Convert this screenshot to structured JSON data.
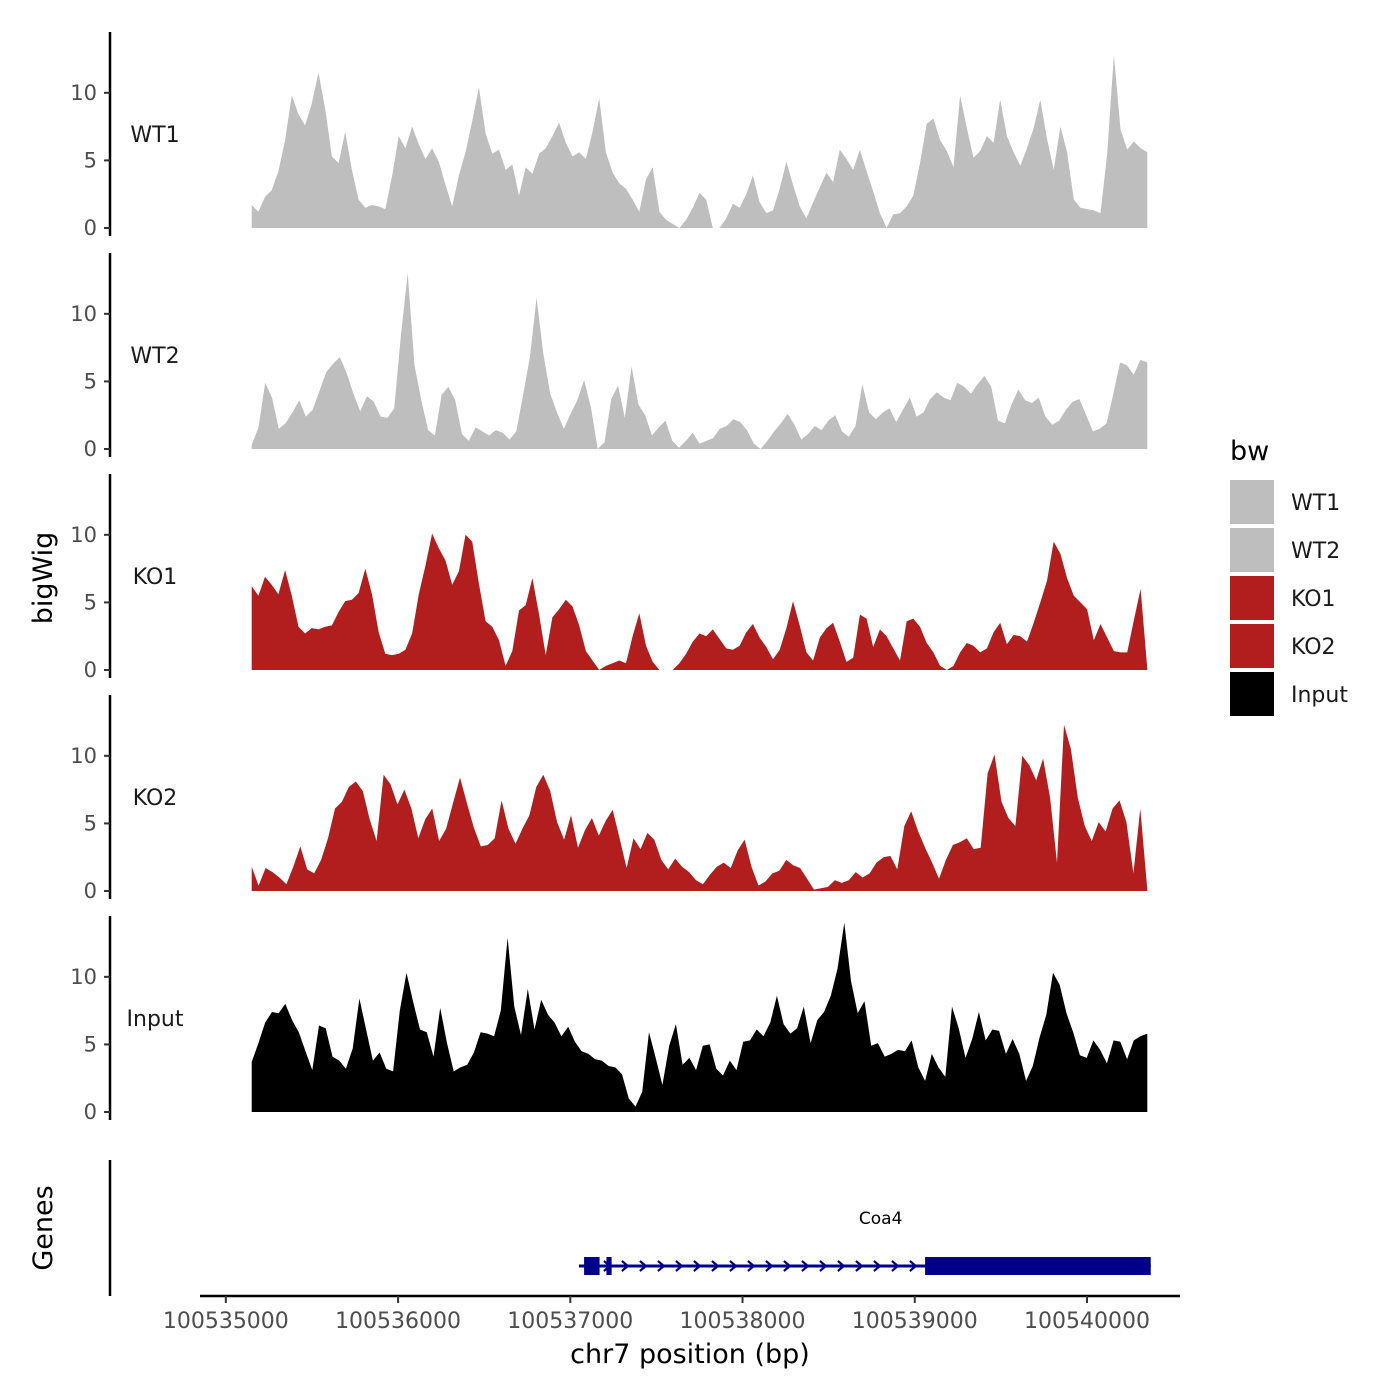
{
  "chart_data": {
    "type": "area",
    "title": "",
    "xlabel": "chr7 position (bp)",
    "ylabel": "bigWig",
    "genes_panel_label": "Genes",
    "xlim": [
      100534850,
      100540540
    ],
    "data_range": [
      100535150,
      100540350
    ],
    "xticks": [
      100535000,
      100536000,
      100537000,
      100538000,
      100539000,
      100540000
    ],
    "xtick_labels": [
      "100535000",
      "100536000",
      "100537000",
      "100538000",
      "100539000",
      "100540000"
    ],
    "ylim": [
      0,
      14.5
    ],
    "yticks": [
      0,
      5,
      10
    ],
    "ytick_labels": [
      "0",
      "5",
      "10"
    ],
    "legend_title": "bw",
    "series": [
      {
        "name": "WT1",
        "color": "#bebebe",
        "values": [
          1.7,
          1.2,
          2.3,
          2.8,
          4.2,
          6.5,
          9.8,
          8.4,
          7.6,
          9.2,
          11.5,
          8.8,
          5.3,
          4.8,
          7.1,
          4.3,
          2.1,
          1.5,
          1.7,
          1.6,
          1.4,
          3.8,
          6.8,
          5.9,
          7.5,
          6.2,
          5.1,
          5.9,
          4.9,
          3.2,
          1.6,
          3.9,
          5.6,
          7.9,
          10.4,
          7.0,
          5.5,
          5.8,
          4.3,
          4.7,
          2.4,
          4.5,
          4.0,
          5.5,
          5.9,
          6.8,
          7.8,
          6.3,
          5.3,
          5.6,
          5.1,
          7.1,
          9.6,
          5.6,
          4.1,
          3.3,
          2.9,
          2.1,
          1.2,
          3.6,
          4.5,
          1.2,
          0.6,
          0.3,
          0.0,
          0.6,
          1.5,
          2.6,
          2.1,
          0.0,
          0.0,
          0.7,
          1.8,
          1.5,
          2.5,
          3.9,
          1.9,
          1.1,
          1.3,
          2.9,
          4.9,
          3.2,
          1.6,
          0.7,
          1.9,
          3.0,
          4.1,
          3.4,
          5.8,
          5.1,
          4.3,
          5.8,
          4.2,
          2.7,
          1.1,
          0.0,
          1.0,
          1.1,
          1.6,
          2.4,
          4.8,
          7.7,
          8.1,
          6.5,
          5.7,
          4.5,
          9.8,
          7.4,
          5.2,
          5.7,
          6.8,
          6.3,
          9.5,
          6.8,
          5.6,
          4.6,
          5.9,
          7.4,
          9.5,
          6.6,
          4.3,
          7.5,
          5.6,
          2.1,
          1.5,
          1.4,
          1.3,
          1.1,
          5.5,
          12.8,
          7.3,
          5.8,
          6.4,
          5.9,
          5.6
        ]
      },
      {
        "name": "WT2",
        "color": "#bebebe",
        "values": [
          0.3,
          1.6,
          4.9,
          3.8,
          1.5,
          1.9,
          2.7,
          3.6,
          2.4,
          2.9,
          4.3,
          5.7,
          6.3,
          6.8,
          5.6,
          4.1,
          2.8,
          3.9,
          3.5,
          2.4,
          2.3,
          3.0,
          8.4,
          13.0,
          6.2,
          3.6,
          1.4,
          1.0,
          4.0,
          4.6,
          3.6,
          1.1,
          0.6,
          1.6,
          1.3,
          1.0,
          1.4,
          1.2,
          0.7,
          1.3,
          4.0,
          6.8,
          11.2,
          7.0,
          4.1,
          2.7,
          1.5,
          2.6,
          3.6,
          5.1,
          3.1,
          0.0,
          0.5,
          3.7,
          4.7,
          2.3,
          6.1,
          3.3,
          2.5,
          1.0,
          1.6,
          2.1,
          0.6,
          0.1,
          0.6,
          1.2,
          0.4,
          0.6,
          0.8,
          1.5,
          1.7,
          2.2,
          2.0,
          1.4,
          0.4,
          0.0,
          0.6,
          1.3,
          1.9,
          2.6,
          1.8,
          0.7,
          1.1,
          1.7,
          1.4,
          2.1,
          2.5,
          1.3,
          0.9,
          1.7,
          4.8,
          2.7,
          2.2,
          2.7,
          3.0,
          2.0,
          2.9,
          3.8,
          2.4,
          2.7,
          3.7,
          4.2,
          3.8,
          3.6,
          4.9,
          4.6,
          4.1,
          4.8,
          5.4,
          4.6,
          2.1,
          1.9,
          3.3,
          4.4,
          3.6,
          3.4,
          3.8,
          2.4,
          1.8,
          2.1,
          2.9,
          3.5,
          3.7,
          2.5,
          1.3,
          1.5,
          1.9,
          4.1,
          6.4,
          6.2,
          5.5,
          6.6,
          6.4
        ]
      },
      {
        "name": "KO1",
        "color": "#b21e1e",
        "values": [
          6.2,
          5.5,
          6.9,
          6.3,
          5.6,
          7.4,
          5.5,
          3.2,
          2.7,
          3.1,
          3.0,
          3.2,
          3.3,
          4.3,
          5.1,
          5.2,
          5.7,
          7.5,
          5.6,
          2.8,
          1.2,
          1.1,
          1.2,
          1.5,
          2.7,
          5.6,
          7.7,
          10.1,
          9.0,
          8.1,
          6.3,
          7.3,
          10.0,
          9.5,
          6.4,
          3.6,
          3.2,
          2.2,
          0.3,
          1.4,
          4.4,
          4.8,
          6.8,
          4.1,
          1.1,
          3.9,
          4.5,
          5.2,
          4.7,
          3.3,
          1.4,
          0.7,
          0.0,
          0.3,
          0.5,
          0.7,
          0.5,
          2.5,
          4.2,
          1.8,
          0.6,
          0.0,
          0.0,
          0.0,
          0.5,
          1.2,
          2.1,
          2.7,
          2.5,
          3.0,
          2.3,
          1.6,
          1.5,
          1.8,
          2.8,
          3.4,
          2.4,
          1.7,
          0.8,
          1.5,
          3.1,
          5.1,
          3.3,
          1.3,
          0.7,
          2.4,
          3.1,
          3.5,
          2.1,
          0.6,
          0.9,
          4.1,
          3.8,
          1.7,
          3.0,
          2.5,
          1.6,
          0.7,
          3.6,
          3.8,
          3.2,
          2.0,
          1.3,
          0.3,
          0.0,
          0.3,
          1.3,
          2.0,
          1.8,
          1.3,
          1.6,
          2.8,
          3.5,
          1.9,
          2.6,
          2.5,
          2.1,
          3.5,
          5.0,
          6.6,
          9.5,
          8.6,
          6.8,
          5.5,
          5.0,
          4.5,
          2.2,
          3.4,
          2.4,
          1.4,
          1.3,
          1.3,
          3.7,
          6.0,
          0.1
        ]
      },
      {
        "name": "KO2",
        "color": "#b21e1e",
        "values": [
          1.8,
          0.4,
          1.7,
          1.4,
          1.0,
          0.5,
          1.8,
          3.3,
          1.6,
          1.3,
          2.3,
          3.9,
          6.1,
          6.6,
          7.7,
          8.1,
          7.4,
          5.3,
          3.7,
          8.6,
          7.9,
          6.4,
          7.5,
          6.1,
          3.9,
          5.3,
          6.1,
          3.7,
          4.6,
          6.5,
          8.4,
          6.5,
          4.7,
          3.3,
          3.4,
          3.9,
          6.7,
          4.6,
          3.5,
          4.6,
          5.6,
          7.7,
          8.6,
          7.4,
          5.1,
          3.8,
          5.6,
          3.2,
          4.5,
          5.4,
          4.1,
          5.2,
          6.0,
          3.9,
          1.7,
          3.9,
          3.1,
          4.3,
          3.8,
          2.3,
          1.6,
          2.4,
          1.8,
          1.4,
          0.8,
          0.5,
          1.2,
          1.8,
          2.1,
          1.7,
          3.0,
          3.8,
          1.8,
          0.4,
          0.7,
          1.3,
          1.5,
          2.3,
          1.9,
          1.7,
          0.9,
          0.1,
          0.2,
          0.3,
          0.8,
          0.6,
          0.8,
          1.4,
          1.0,
          1.3,
          2.1,
          2.5,
          2.6,
          1.6,
          4.8,
          5.9,
          4.4,
          3.2,
          2.1,
          0.9,
          2.3,
          3.4,
          3.6,
          3.9,
          3.1,
          3.2,
          8.7,
          10.1,
          6.6,
          5.4,
          4.8,
          10.0,
          9.3,
          8.2,
          9.8,
          6.9,
          2.1,
          12.3,
          10.5,
          6.9,
          4.8,
          3.7,
          5.1,
          4.4,
          6.1,
          6.7,
          5.1,
          1.3,
          6.1,
          0.1
        ]
      },
      {
        "name": "Input",
        "color": "#000000",
        "values": [
          3.7,
          5.1,
          6.6,
          7.4,
          7.3,
          8.0,
          6.8,
          5.9,
          4.5,
          3.1,
          6.4,
          6.2,
          4.1,
          3.8,
          3.2,
          4.7,
          8.4,
          6.1,
          3.8,
          4.4,
          3.2,
          3.0,
          7.5,
          10.3,
          8.1,
          6.1,
          5.9,
          4.1,
          7.7,
          5.1,
          3.0,
          3.3,
          3.5,
          4.4,
          5.9,
          5.8,
          5.6,
          7.5,
          12.9,
          7.8,
          5.7,
          9.1,
          6.1,
          8.3,
          7.2,
          6.6,
          5.6,
          6.3,
          5.2,
          4.5,
          4.3,
          3.9,
          3.8,
          3.4,
          3.3,
          2.8,
          1.0,
          0.4,
          1.5,
          5.9,
          4.0,
          2.0,
          4.9,
          6.5,
          3.5,
          4.0,
          3.1,
          4.9,
          5.0,
          3.2,
          2.7,
          3.8,
          3.1,
          5.2,
          5.3,
          6.1,
          5.6,
          6.6,
          8.6,
          6.5,
          5.8,
          6.2,
          7.8,
          5.1,
          6.8,
          7.4,
          8.6,
          10.6,
          14.0,
          9.7,
          7.3,
          8.2,
          4.9,
          5.1,
          4.1,
          4.3,
          4.6,
          4.5,
          5.3,
          3.3,
          2.3,
          4.3,
          3.3,
          2.6,
          7.8,
          6.2,
          4.0,
          5.4,
          7.4,
          5.3,
          6.1,
          6.0,
          4.3,
          5.4,
          4.3,
          2.3,
          3.4,
          5.5,
          7.2,
          10.3,
          9.4,
          7.3,
          5.9,
          4.2,
          4.0,
          5.3,
          4.6,
          3.6,
          5.3,
          5.2,
          3.9,
          5.3,
          5.6,
          5.8
        ]
      }
    ],
    "genes": [
      {
        "name": "Coa4",
        "start": 100537050,
        "end": 100540370,
        "strand": "+",
        "color": "#00008b",
        "exons": [
          [
            100537080,
            100537170
          ],
          [
            100537210,
            100537240
          ],
          [
            100539060,
            100540370
          ]
        ]
      }
    ]
  }
}
